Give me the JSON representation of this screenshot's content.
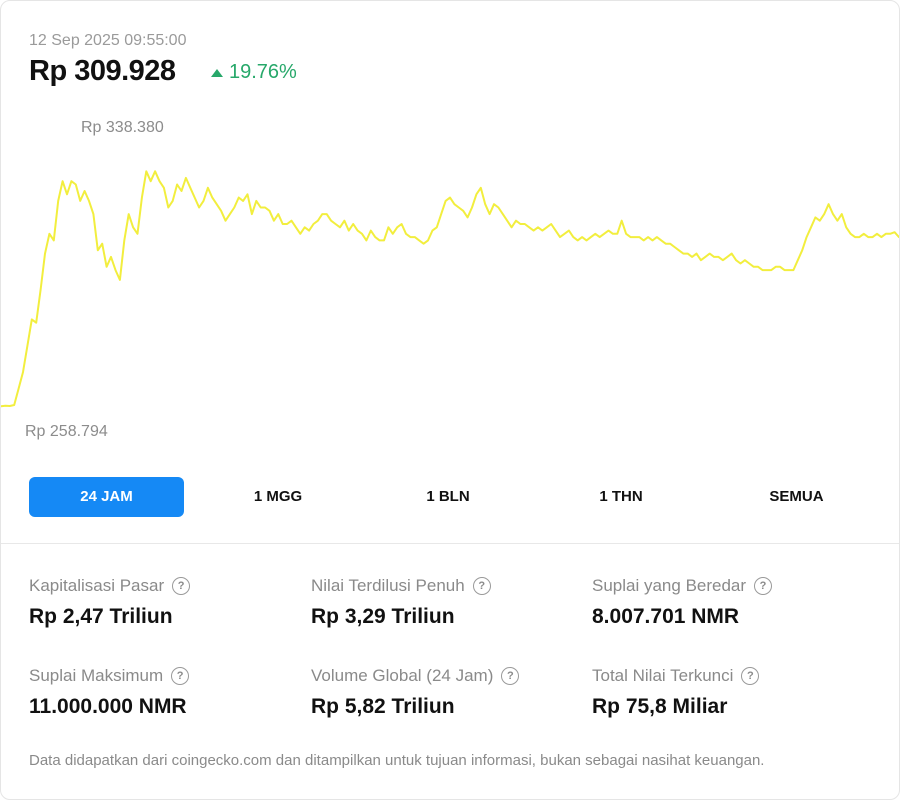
{
  "header": {
    "timestamp": "12 Sep 2025 09:55:00",
    "price": "Rp 309.928",
    "change": "19.76%",
    "change_color": "#27a86a"
  },
  "chart_data": {
    "type": "line",
    "high_label": "Rp 338.380",
    "low_label": "Rp 258.794",
    "ylim": [
      258794,
      338380
    ],
    "color": "#f2ee3e",
    "values": [
      259600,
      259800,
      259700,
      260000,
      265000,
      270000,
      278000,
      286000,
      285000,
      295000,
      306000,
      312000,
      310000,
      322000,
      328000,
      324000,
      328000,
      327000,
      322000,
      325000,
      322000,
      318000,
      307000,
      309000,
      302000,
      305000,
      301000,
      298000,
      310000,
      318000,
      314000,
      312000,
      323000,
      331000,
      328000,
      331000,
      328000,
      326000,
      320000,
      322000,
      327000,
      325000,
      329000,
      326000,
      323000,
      320000,
      322000,
      326000,
      323000,
      321000,
      319000,
      316000,
      318000,
      320000,
      323000,
      322000,
      324000,
      318000,
      322000,
      320000,
      320000,
      319000,
      316000,
      318000,
      315000,
      315000,
      316000,
      314000,
      312000,
      314000,
      313000,
      315000,
      316000,
      318000,
      318000,
      316000,
      315000,
      314000,
      316000,
      313000,
      315000,
      313000,
      312000,
      310000,
      313000,
      311000,
      310000,
      310000,
      314000,
      312000,
      314000,
      315000,
      312000,
      311000,
      311000,
      310000,
      309000,
      310000,
      313000,
      314000,
      318000,
      322000,
      323000,
      321000,
      320000,
      319000,
      317000,
      320000,
      324000,
      326000,
      321000,
      318000,
      321000,
      320000,
      318000,
      316000,
      314000,
      316000,
      315000,
      315000,
      314000,
      313000,
      314000,
      313000,
      314000,
      315000,
      313000,
      311000,
      312000,
      313000,
      311000,
      310000,
      311000,
      310000,
      311000,
      312000,
      311000,
      312000,
      313000,
      312000,
      312000,
      316000,
      312000,
      311000,
      311000,
      311000,
      310000,
      311000,
      310000,
      311000,
      310000,
      309000,
      309000,
      308000,
      307000,
      306000,
      306000,
      305000,
      306000,
      304000,
      305000,
      306000,
      305000,
      305000,
      304000,
      305000,
      306000,
      304000,
      303000,
      304000,
      303000,
      302000,
      302000,
      301000,
      301000,
      301000,
      302000,
      302000,
      301000,
      301000,
      301000,
      304000,
      307000,
      311000,
      314000,
      317000,
      316000,
      318000,
      321000,
      318000,
      316000,
      318000,
      314000,
      312000,
      311000,
      311000,
      312000,
      311000,
      311000,
      312000,
      311000,
      312000,
      312000,
      312500,
      311000
    ]
  },
  "periods": [
    "24 JAM",
    "1 MGG",
    "1 BLN",
    "1 THN",
    "SEMUA"
  ],
  "active_period": 0,
  "stats": [
    {
      "label": "Kapitalisasi Pasar",
      "value": "Rp 2,47 Triliun"
    },
    {
      "label": "Nilai Terdilusi Penuh",
      "value": "Rp 3,29 Triliun"
    },
    {
      "label": "Suplai yang Beredar",
      "value": "8.007.701 NMR"
    },
    {
      "label": "Suplai Maksimum",
      "value": "11.000.000 NMR"
    },
    {
      "label": "Volume Global (24 Jam)",
      "value": "Rp 5,82 Triliun"
    },
    {
      "label": "Total Nilai Terkunci",
      "value": "Rp 75,8 Miliar"
    }
  ],
  "help_glyph": "?",
  "footer": "Data didapatkan dari coingecko.com dan ditampilkan untuk tujuan informasi, bukan sebagai nasihat keuangan."
}
